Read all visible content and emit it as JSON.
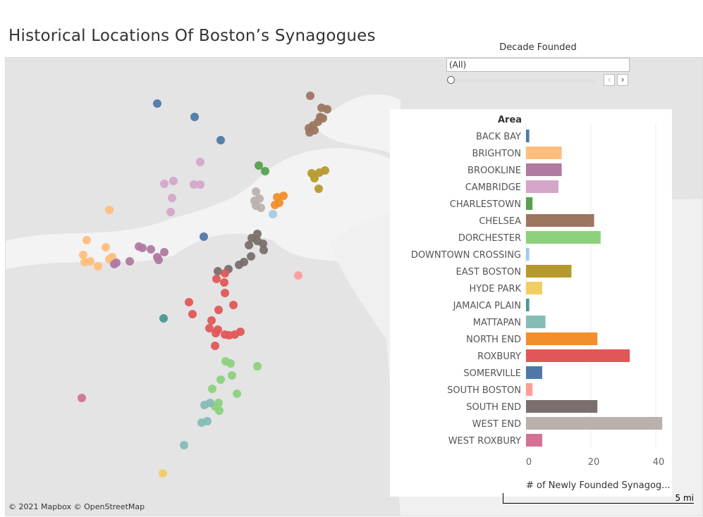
{
  "title": "Historical Locations Of Boston’s Synagogues",
  "filter": {
    "label": "Decade Founded",
    "value": "(All)",
    "prev": "‹",
    "next": "›"
  },
  "map": {
    "copyright": "© 2021 Mapbox  © OpenStreetMap",
    "scale": "5 mi"
  },
  "chart_data": {
    "type": "bar",
    "orientation": "horizontal",
    "category_header": "Area",
    "xlabel": "# of Newly Founded Synagog...",
    "xlim": [
      0,
      45
    ],
    "xticks": [
      "0",
      "20",
      "40"
    ],
    "categories": [
      "BACK BAY",
      "BRIGHTON",
      "BROOKLINE",
      "CAMBRIDGE",
      "CHARLESTOWN",
      "CHELSEA",
      "DORCHESTER",
      "DOWNTOWN CROSSING",
      "EAST BOSTON",
      "HYDE PARK",
      "JAMAICA PLAIN",
      "MATTAPAN",
      "NORTH END",
      "ROXBURY",
      "SOMERVILLE",
      "SOUTH BOSTON",
      "SOUTH END",
      "WEST END",
      "WEST ROXBURY"
    ],
    "values": [
      1,
      11,
      11,
      10,
      2,
      21,
      23,
      1,
      14,
      5,
      1,
      6,
      22,
      32,
      5,
      2,
      22,
      42,
      5
    ],
    "colors": [
      "#4e79a7",
      "#ffbe7d",
      "#b07aa1",
      "#d4a6c8",
      "#59a14f",
      "#9d7660",
      "#8cd17d",
      "#a0cbe8",
      "#b6992d",
      "#f1ce63",
      "#499894",
      "#86bcb6",
      "#f28e2b",
      "#e15759",
      "#4e79a7",
      "#ff9d9a",
      "#79706e",
      "#bab0ac",
      "#d37295"
    ]
  }
}
